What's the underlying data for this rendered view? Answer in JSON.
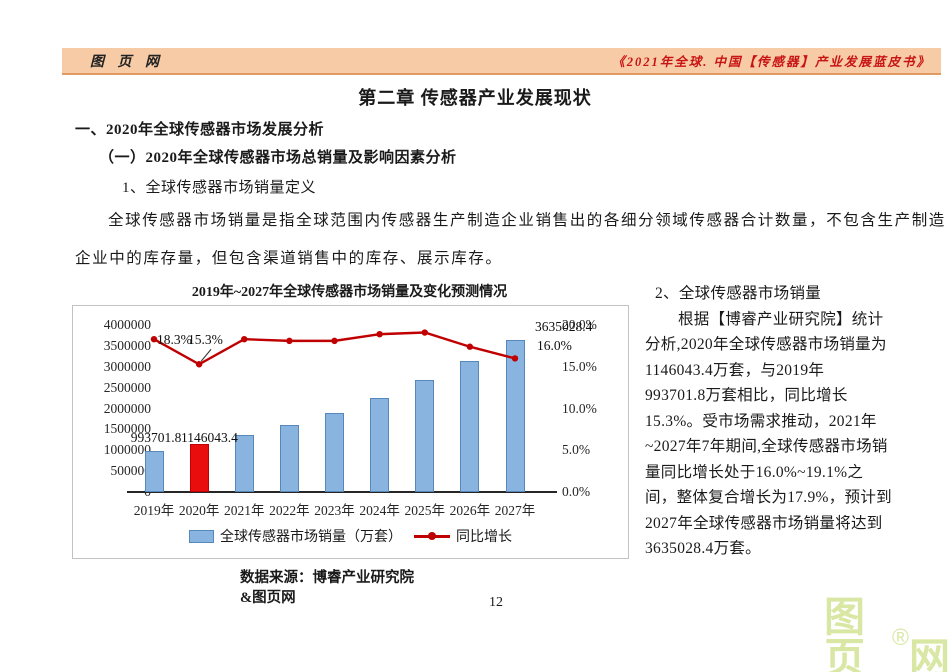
{
  "page": {
    "header": {
      "logo": "图 页 网",
      "book_title": "《2021年全球. 中国【传感器】产业发展蓝皮书》"
    },
    "chapter_title": "第二章 传感器产业发展现状",
    "heading1": "一、2020年全球传感器市场发展分析",
    "heading2": "（一）2020年全球传感器市场总销量及影响因素分析",
    "heading3": "1、全球传感器市场销量定义",
    "paragraph_lines": {
      "line1": "全球传感器市场销量是指全球范围内传感器生产制造企业销售出的各细分领域传感器合计数量，不包含生产制造",
      "line2": "企业中的库存量，但包含渠道销售中的库存、展示库存。"
    },
    "right_column": {
      "heading": "2、全球传感器市场销量",
      "lines": [
        "根据【博睿产业研究院】统计",
        "分析,2020年全球传感器市场销量为",
        "1146043.4万套，与2019年",
        "993701.8万套相比，同比增长",
        "15.3%。受市场需求推动，2021年",
        "~2027年7年期间,全球传感器市场销",
        "量同比增长处于16.0%~19.1%之",
        "间，整体复合增长为17.9%，预计到",
        "2027年全球传感器市场销量将达到",
        "3635028.4万套。"
      ]
    },
    "footer": {
      "source_line1": "数据来源：博睿产业研究院",
      "source_line2": "&图页网",
      "page_number": "12"
    },
    "watermark": {
      "part1": "图页",
      "registered": "®",
      "part2": "网",
      "color": "#d8e7a3"
    }
  },
  "chart_data": {
    "type": "bar",
    "subtype": "bar-line-combo",
    "title": "2019年~2027年全球传感器市场销量及变化预测情况",
    "categories": [
      "2019年",
      "2020年",
      "2021年",
      "2022年",
      "2023年",
      "2024年",
      "2025年",
      "2026年",
      "2027年"
    ],
    "series": [
      {
        "name": "全球传感器市场销量（万套）",
        "type": "bar",
        "axis": "left",
        "values": [
          993701.8,
          1146043.4,
          1355800,
          1601200,
          1891000,
          2248400,
          2677800,
          3143700,
          3635028.4
        ],
        "color": "#8ab4e0",
        "border_color": "#5688bb",
        "highlight": {
          "index": 1,
          "color": "#e90d0d",
          "border_color": "#c00000"
        }
      },
      {
        "name": "同比增长",
        "type": "line",
        "axis": "right",
        "values": [
          18.3,
          15.3,
          18.3,
          18.1,
          18.1,
          18.9,
          19.1,
          17.4,
          16.0
        ],
        "color": "#c00000"
      }
    ],
    "left_axis": {
      "min": 0,
      "max": 4000000,
      "step": 500000,
      "ticks": [
        "4000000",
        "3500000",
        "3000000",
        "2500000",
        "2000000",
        "1500000",
        "1000000",
        "500000",
        "0"
      ]
    },
    "right_axis": {
      "min": 0,
      "max": 20,
      "step": 5,
      "ticks": [
        "20.0%",
        "15.0%",
        "10.0%",
        "5.0%",
        "0.0%"
      ]
    },
    "annotations": {
      "sales_2019_label": "993701.8",
      "sales_2020_label": "1146043.4",
      "sales_2027_label": "3635028.4",
      "growth_2019_label": "18.3%",
      "growth_2020_label": "15.3%",
      "growth_2027_label": "16.0%"
    },
    "grid": false,
    "legend_position": "bottom-inside"
  }
}
